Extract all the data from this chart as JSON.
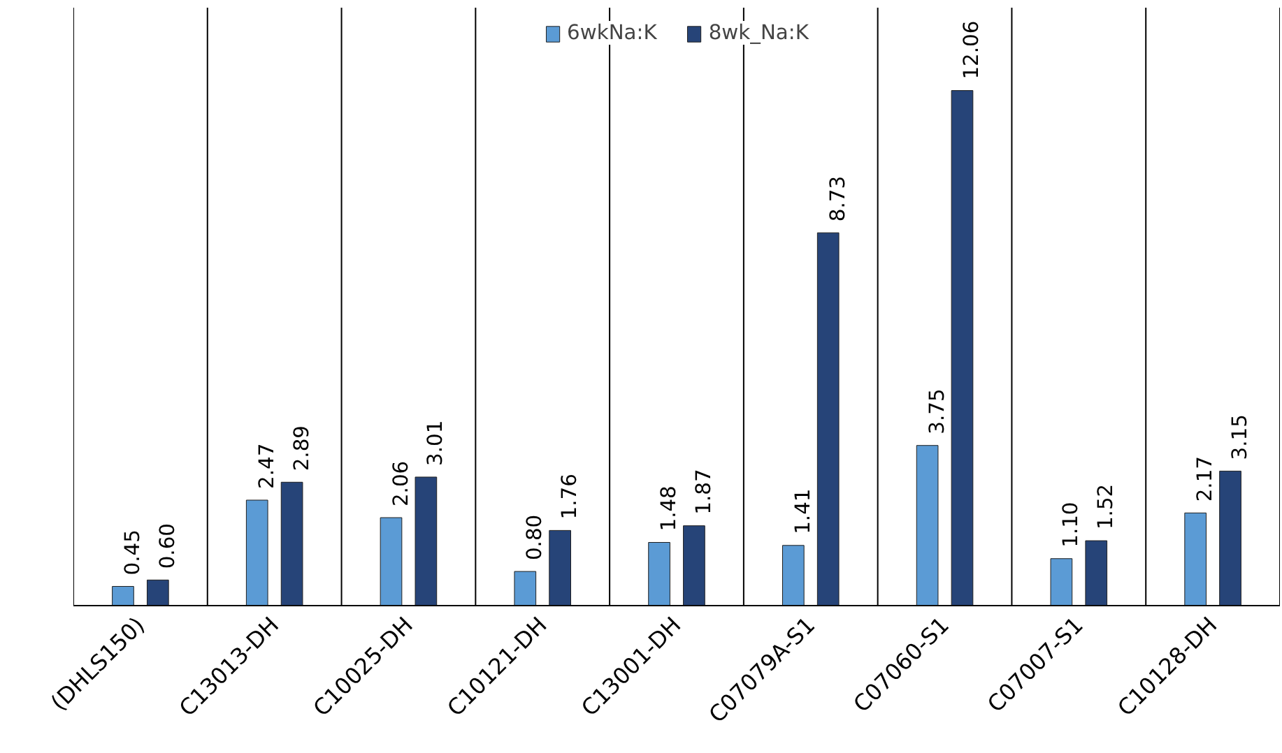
{
  "chart_data": {
    "type": "bar",
    "categories": [
      "(DHLS150)",
      "C13013-DH",
      "C10025-DH",
      "C10121-DH",
      "C13001-DH",
      "C07079A-S1",
      "C07060-S1",
      "C07007-S1",
      "C10128-DH"
    ],
    "series": [
      {
        "name": "6wkNa:K",
        "color": "#5b9bd5",
        "values": [
          0.45,
          2.47,
          2.06,
          0.8,
          1.48,
          1.41,
          3.75,
          1.1,
          2.17
        ],
        "value_labels": [
          "0.45",
          "2.47",
          "2.06",
          "0.80",
          "1.48",
          "1.41",
          "3.75",
          "1.10",
          "2.17"
        ]
      },
      {
        "name": "8wk_Na:K",
        "color": "#264478",
        "values": [
          0.6,
          2.89,
          3.01,
          1.76,
          1.87,
          8.73,
          12.06,
          1.52,
          3.15
        ],
        "value_labels": [
          "0.60",
          "2.89",
          "3.01",
          "1.76",
          "1.87",
          "8.73",
          "12.06",
          "1.52",
          "3.15"
        ]
      }
    ],
    "ylim": [
      0,
      14
    ],
    "grid": "x",
    "legend": "top",
    "tick_labels": "x"
  }
}
